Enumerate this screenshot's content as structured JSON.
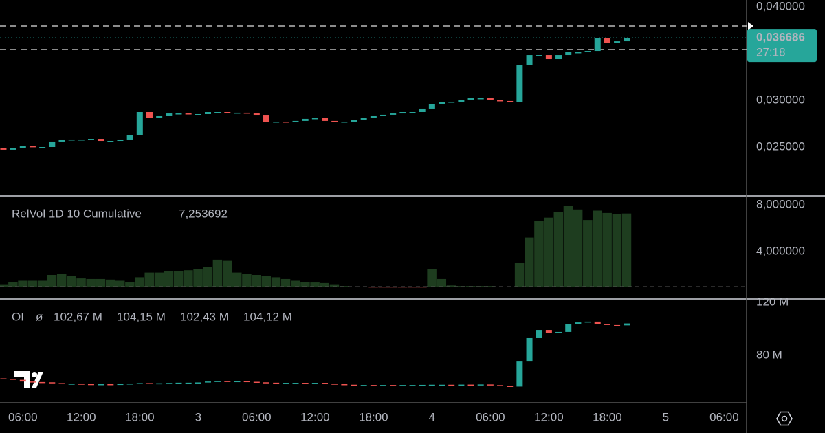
{
  "chart_data": [
    {
      "type": "candlestick",
      "up_color": "#26a69a",
      "down_color": "#ef5350",
      "open": [
        0.0249,
        0.02471,
        0.02486,
        0.02508,
        0.025,
        0.025,
        0.02559,
        0.02581,
        0.02581,
        0.02581,
        0.02588,
        0.02566,
        0.02566,
        0.02581,
        0.02632,
        0.02875,
        0.02809,
        0.02831,
        0.0286,
        0.0286,
        0.02853,
        0.02853,
        0.02875,
        0.02875,
        0.02868,
        0.02868,
        0.0286,
        0.02838,
        0.02765,
        0.02772,
        0.02765,
        0.0278,
        0.02802,
        0.02809,
        0.0278,
        0.02765,
        0.02772,
        0.02794,
        0.02809,
        0.02831,
        0.02846,
        0.0286,
        0.02875,
        0.02875,
        0.02912,
        0.02956,
        0.02978,
        0.02985,
        0.03,
        0.03022,
        0.03022,
        0.03,
        0.02993,
        0.02978,
        0.03382,
        0.03485,
        0.03485,
        0.03441,
        0.03485,
        0.03515,
        0.03515,
        0.03529,
        0.03669,
        0.03617,
        0.03632
      ],
      "close": [
        0.02471,
        0.02486,
        0.02508,
        0.025,
        0.025,
        0.02559,
        0.02581,
        0.02581,
        0.02581,
        0.02588,
        0.02566,
        0.02566,
        0.02581,
        0.02632,
        0.02875,
        0.02809,
        0.02831,
        0.0286,
        0.0286,
        0.02853,
        0.02853,
        0.02875,
        0.02875,
        0.02868,
        0.02868,
        0.0286,
        0.02838,
        0.02765,
        0.02772,
        0.02765,
        0.0278,
        0.02802,
        0.02809,
        0.0278,
        0.02765,
        0.02772,
        0.02794,
        0.02809,
        0.02831,
        0.02846,
        0.0286,
        0.02875,
        0.02875,
        0.02912,
        0.02956,
        0.02978,
        0.02985,
        0.03,
        0.03022,
        0.03022,
        0.03,
        0.02993,
        0.02978,
        0.03382,
        0.03485,
        0.03485,
        0.03441,
        0.03485,
        0.03515,
        0.03515,
        0.03529,
        0.03669,
        0.03617,
        0.03632,
        0.036686
      ],
      "hlines": [
        0.03794,
        0.03544
      ],
      "last_price": {
        "value": 0.036686,
        "label": "0,036686"
      },
      "countdown": "27:18",
      "ylim": [
        0.019853,
        0.040735
      ],
      "yticks": [
        {
          "value": 0.04,
          "label": "0,040000"
        },
        {
          "value": 0.03,
          "label": "0,030000"
        },
        {
          "value": 0.025,
          "label": "0,025000"
        }
      ]
    },
    {
      "type": "bar",
      "title": "RelVol 1D 10 Cumulative",
      "last_label": "7,253692",
      "color": "#1e3d1f",
      "below_color": "#4a1c1c",
      "base": 1,
      "values": [
        1.2,
        1.4,
        1.5,
        1.5,
        1.5,
        2.0,
        2.1,
        1.9,
        1.7,
        1.65,
        1.65,
        1.6,
        1.5,
        1.4,
        1.8,
        2.2,
        2.2,
        2.3,
        2.35,
        2.4,
        2.5,
        2.7,
        3.3,
        3.2,
        2.2,
        2.1,
        2.0,
        1.9,
        1.8,
        1.65,
        1.5,
        1.4,
        1.35,
        1.3,
        1.2,
        1.05,
        0.95,
        0.95,
        0.9,
        0.9,
        0.9,
        0.9,
        0.9,
        0.9,
        2.5,
        1.65,
        1.1,
        1.05,
        1.05,
        1.05,
        1.05,
        1.0,
        0.95,
        3.0,
        5.2,
        6.6,
        6.9,
        7.4,
        7.9,
        7.6,
        6.7,
        7.5,
        7.3,
        7.2,
        7.253692
      ],
      "ylim": [
        0,
        8.706
      ],
      "yticks": [
        {
          "value": 8,
          "label": "8,000000"
        },
        {
          "value": 4,
          "label": "4,000000"
        }
      ]
    },
    {
      "type": "candlestick",
      "title": "OI",
      "legend": [
        "ø",
        "102,67 M",
        "104,15 M",
        "102,43 M",
        "104,12 M"
      ],
      "up_color": "#26a69a",
      "down_color": "#ef5350",
      "open": [
        62.6,
        62.3,
        61.5,
        60.2,
        59.8,
        59.6,
        59.0,
        58.6,
        58.6,
        58.3,
        58.0,
        58.2,
        58.0,
        58.4,
        58.7,
        59.0,
        58.8,
        58.9,
        59.1,
        59.3,
        59.3,
        59.5,
        60.2,
        60.6,
        60.4,
        60.5,
        60.0,
        59.6,
        59.3,
        59.0,
        59.2,
        59.2,
        59.0,
        59.2,
        58.6,
        58.2,
        57.8,
        57.4,
        57.6,
        57.5,
        57.6,
        57.5,
        57.6,
        57.6,
        57.7,
        57.8,
        57.8,
        57.7,
        57.9,
        57.8,
        58.0,
        57.5,
        56.9,
        56.4,
        75.8,
        93.0,
        99.2,
        97.0,
        97.7,
        103.4,
        104.9,
        105.5,
        103.8,
        102.9,
        102.67
      ],
      "close": [
        62.3,
        61.5,
        60.2,
        59.8,
        59.6,
        59.0,
        58.6,
        58.6,
        58.3,
        58.0,
        58.2,
        58.0,
        58.4,
        58.7,
        59.0,
        58.8,
        58.9,
        59.1,
        59.3,
        59.3,
        59.5,
        60.2,
        60.6,
        60.4,
        60.5,
        60.0,
        59.6,
        59.3,
        59.0,
        59.2,
        59.2,
        59.0,
        59.2,
        58.6,
        58.2,
        57.8,
        57.4,
        57.6,
        57.5,
        57.6,
        57.5,
        57.6,
        57.6,
        57.7,
        57.8,
        57.8,
        57.7,
        57.9,
        57.8,
        58.0,
        57.5,
        56.9,
        56.4,
        75.8,
        93.0,
        99.2,
        97.0,
        97.7,
        103.4,
        104.9,
        105.5,
        103.8,
        102.9,
        102.67,
        104.12
      ],
      "ylim": [
        44.16,
        122.08
      ],
      "yticks": [
        {
          "value": 120,
          "label": "120 M"
        },
        {
          "value": 80,
          "label": "80 M"
        }
      ],
      "xlim": [
        -0.35,
        76.3
      ],
      "xticks": [
        {
          "value": 2,
          "label": "06:00"
        },
        {
          "value": 8,
          "label": "12:00"
        },
        {
          "value": 14,
          "label": "18:00"
        },
        {
          "value": 20,
          "label": "3"
        },
        {
          "value": 26,
          "label": "06:00"
        },
        {
          "value": 32,
          "label": "12:00"
        },
        {
          "value": 38,
          "label": "18:00"
        },
        {
          "value": 44,
          "label": "4"
        },
        {
          "value": 50,
          "label": "06:00"
        },
        {
          "value": 56,
          "label": "12:00"
        },
        {
          "value": 62,
          "label": "18:00"
        },
        {
          "value": 68,
          "label": "5"
        },
        {
          "value": 74,
          "label": "06:00"
        }
      ]
    }
  ]
}
